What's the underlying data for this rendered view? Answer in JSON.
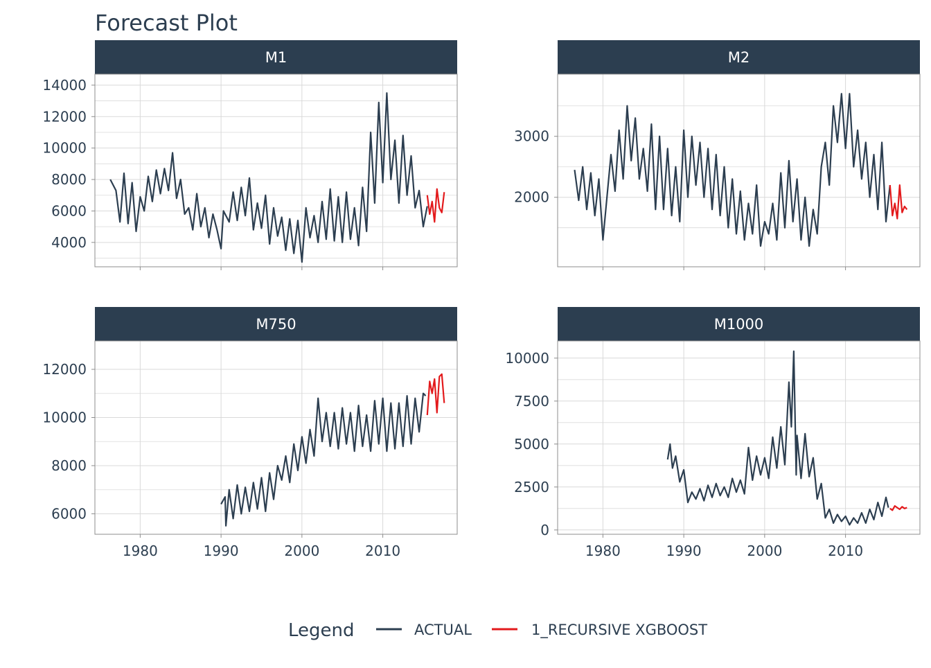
{
  "title": "Forecast Plot",
  "colors": {
    "actual": "#2c3e50",
    "forecast": "#e31a1c",
    "strip": "#2c3e50",
    "strip_text": "#ffffff",
    "grid": "#d9d9d9",
    "panel_border": "#8c8c8c",
    "text": "#2c3e50"
  },
  "legend": {
    "title": "Legend",
    "position": "bottom",
    "items": [
      {
        "label": "ACTUAL",
        "color": "#2c3e50"
      },
      {
        "label": "1_RECURSIVE XGBOOST",
        "color": "#e31a1c"
      }
    ]
  },
  "chart_data": [
    {
      "panel": "M1",
      "type": "line",
      "xlim": [
        1974.4,
        2019.2
      ],
      "ylim": [
        2450,
        14700
      ],
      "x_ticks": [
        1980,
        1990,
        2000,
        2010
      ],
      "x_tick_labels": [
        "",
        "",
        "",
        ""
      ],
      "y_ticks": [
        4000,
        6000,
        8000,
        10000,
        12000,
        14000
      ],
      "y_tick_labels": [
        "4000",
        "6000",
        "8000",
        "10000",
        "12000",
        "14000"
      ],
      "y_minor": [
        3000,
        5000,
        7000,
        9000,
        11000,
        13000
      ],
      "series": [
        {
          "name": "ACTUAL",
          "x": [
            1976.3,
            1977.0,
            1977.5,
            1978.0,
            1978.5,
            1979.0,
            1979.5,
            1980.0,
            1980.5,
            1981.0,
            1981.5,
            1982.0,
            1982.5,
            1983.0,
            1983.5,
            1984.0,
            1984.5,
            1985.0,
            1985.5,
            1986.0,
            1986.5,
            1987.0,
            1987.5,
            1988.0,
            1988.5,
            1989.0,
            1989.5,
            1990.0,
            1990.3,
            1991.0,
            1991.5,
            1992.0,
            1992.5,
            1993.0,
            1993.5,
            1994.0,
            1994.5,
            1995.0,
            1995.5,
            1996.0,
            1996.5,
            1997.0,
            1997.5,
            1998.0,
            1998.5,
            1999.0,
            1999.5,
            2000.0,
            2000.5,
            2001.0,
            2001.5,
            2002.0,
            2002.5,
            2003.0,
            2003.5,
            2004.0,
            2004.5,
            2005.0,
            2005.5,
            2006.0,
            2006.5,
            2007.0,
            2007.5,
            2008.0,
            2008.5,
            2009.0,
            2009.5,
            2010.0,
            2010.5,
            2011.0,
            2011.5,
            2012.0,
            2012.5,
            2013.0,
            2013.5,
            2014.0,
            2014.5,
            2015.0,
            2015.5
          ],
          "y": [
            8000,
            7300,
            5300,
            8400,
            5200,
            7800,
            4700,
            6900,
            6000,
            8200,
            6600,
            8600,
            7100,
            8700,
            7300,
            9700,
            6800,
            8000,
            5800,
            6200,
            4800,
            7100,
            5000,
            6200,
            4300,
            5800,
            4800,
            3600,
            6000,
            5300,
            7200,
            5400,
            7500,
            5700,
            8100,
            4800,
            6500,
            4900,
            7000,
            3900,
            6200,
            4400,
            5600,
            3500,
            5500,
            3300,
            5400,
            2750,
            6200,
            4300,
            5700,
            4000,
            6600,
            4200,
            7400,
            4100,
            6900,
            4000,
            7200,
            4200,
            6200,
            3800,
            7500,
            4700,
            11000,
            6500,
            12900,
            7800,
            13500,
            8000,
            10500,
            6500,
            10800,
            7000,
            9500,
            6200,
            7300,
            5000,
            6300
          ]
        },
        {
          "name": "1_RECURSIVE XGBOOST",
          "x": [
            2015.5,
            2015.8,
            2016.1,
            2016.4,
            2016.7,
            2017.0,
            2017.3,
            2017.6
          ],
          "y": [
            7000,
            5800,
            6600,
            5300,
            7400,
            6200,
            5900,
            7200
          ]
        }
      ]
    },
    {
      "panel": "M2",
      "type": "line",
      "xlim": [
        1974.4,
        2019.2
      ],
      "ylim": [
        860,
        4020
      ],
      "x_ticks": [
        1980,
        1990,
        2000,
        2010
      ],
      "x_tick_labels": [
        "",
        "",
        "",
        ""
      ],
      "y_ticks": [
        2000,
        3000
      ],
      "y_tick_labels": [
        "2000",
        "3000"
      ],
      "y_minor": [
        1500,
        2500,
        3500
      ],
      "series": [
        {
          "name": "ACTUAL",
          "x": [
            1976.5,
            1977.0,
            1977.5,
            1978.0,
            1978.5,
            1979.0,
            1979.5,
            1980.0,
            1980.5,
            1981.0,
            1981.5,
            1982.0,
            1982.5,
            1983.0,
            1983.5,
            1984.0,
            1984.5,
            1985.0,
            1985.5,
            1986.0,
            1986.5,
            1987.0,
            1987.5,
            1988.0,
            1988.5,
            1989.0,
            1989.5,
            1990.0,
            1990.5,
            1991.0,
            1991.5,
            1992.0,
            1992.5,
            1993.0,
            1993.5,
            1994.0,
            1994.5,
            1995.0,
            1995.5,
            1996.0,
            1996.5,
            1997.0,
            1997.5,
            1998.0,
            1998.5,
            1999.0,
            1999.5,
            2000.0,
            2000.5,
            2001.0,
            2001.5,
            2002.0,
            2002.5,
            2003.0,
            2003.5,
            2004.0,
            2004.5,
            2005.0,
            2005.5,
            2006.0,
            2006.5,
            2007.0,
            2007.5,
            2008.0,
            2008.5,
            2009.0,
            2009.5,
            2010.0,
            2010.5,
            2011.0,
            2011.5,
            2012.0,
            2012.5,
            2013.0,
            2013.5,
            2014.0,
            2014.5,
            2015.0,
            2015.5
          ],
          "y": [
            2450,
            1950,
            2500,
            1800,
            2400,
            1700,
            2300,
            1300,
            2000,
            2700,
            2100,
            3100,
            2300,
            3500,
            2600,
            3300,
            2300,
            2800,
            2100,
            3200,
            1800,
            3000,
            1800,
            2800,
            1700,
            2500,
            1600,
            3100,
            2000,
            3000,
            2200,
            2900,
            2000,
            2800,
            1800,
            2700,
            1700,
            2500,
            1500,
            2300,
            1400,
            2100,
            1300,
            1900,
            1400,
            2200,
            1200,
            1600,
            1400,
            1900,
            1300,
            2400,
            1500,
            2600,
            1600,
            2300,
            1300,
            2000,
            1200,
            1800,
            1400,
            2500,
            2900,
            2200,
            3500,
            2900,
            3700,
            2800,
            3700,
            2500,
            3100,
            2300,
            2900,
            2000,
            2700,
            1800,
            2900,
            1600,
            2200
          ]
        },
        {
          "name": "1_RECURSIVE XGBOOST",
          "x": [
            2015.5,
            2015.8,
            2016.1,
            2016.4,
            2016.7,
            2017.0,
            2017.3,
            2017.6
          ],
          "y": [
            2200,
            1700,
            1900,
            1650,
            2200,
            1750,
            1850,
            1800
          ]
        }
      ]
    },
    {
      "panel": "M750",
      "type": "line",
      "xlim": [
        1974.4,
        2019.2
      ],
      "ylim": [
        5150,
        13180
      ],
      "x_ticks": [
        1980,
        1990,
        2000,
        2010
      ],
      "x_tick_labels": [
        "1980",
        "1990",
        "2000",
        "2010"
      ],
      "y_ticks": [
        6000,
        8000,
        10000,
        12000
      ],
      "y_tick_labels": [
        "6000",
        "8000",
        "10000",
        "12000"
      ],
      "y_minor": [
        7000,
        9000,
        11000
      ],
      "series": [
        {
          "name": "ACTUAL",
          "x": [
            1990.0,
            1990.5,
            1990.6,
            1991.0,
            1991.5,
            1992.0,
            1992.5,
            1993.0,
            1993.5,
            1994.0,
            1994.5,
            1995.0,
            1995.5,
            1996.0,
            1996.5,
            1997.0,
            1997.5,
            1998.0,
            1998.5,
            1999.0,
            1999.5,
            2000.0,
            2000.5,
            2001.0,
            2001.5,
            2002.0,
            2002.5,
            2003.0,
            2003.5,
            2004.0,
            2004.5,
            2005.0,
            2005.5,
            2006.0,
            2006.5,
            2007.0,
            2007.5,
            2008.0,
            2008.5,
            2009.0,
            2009.5,
            2010.0,
            2010.5,
            2011.0,
            2011.5,
            2012.0,
            2012.5,
            2013.0,
            2013.5,
            2014.0,
            2014.5,
            2015.0,
            2015.3
          ],
          "y": [
            6400,
            6700,
            5500,
            7000,
            5800,
            7200,
            6000,
            7100,
            6100,
            7300,
            6200,
            7500,
            6100,
            7700,
            6600,
            8000,
            7400,
            8400,
            7300,
            8900,
            7800,
            9200,
            8100,
            9500,
            8400,
            10800,
            9000,
            10200,
            8800,
            10200,
            8700,
            10400,
            8900,
            10200,
            8600,
            10500,
            8800,
            10100,
            8600,
            10700,
            8900,
            10800,
            8600,
            10600,
            8700,
            10600,
            8800,
            10900,
            8900,
            10800,
            9400,
            11000,
            10900
          ]
        },
        {
          "name": "1_RECURSIVE XGBOOST",
          "x": [
            2015.5,
            2015.8,
            2016.1,
            2016.4,
            2016.7,
            2017.0,
            2017.3,
            2017.6
          ],
          "y": [
            10100,
            11500,
            11000,
            11600,
            10200,
            11700,
            11800,
            10600
          ]
        }
      ]
    },
    {
      "panel": "M1000",
      "type": "line",
      "xlim": [
        1974.4,
        2019.2
      ],
      "ylim": [
        -250,
        11000
      ],
      "x_ticks": [
        1980,
        1990,
        2000,
        2010
      ],
      "x_tick_labels": [
        "1980",
        "1990",
        "2000",
        "2010"
      ],
      "y_ticks": [
        0,
        2500,
        5000,
        7500,
        10000
      ],
      "y_tick_labels": [
        "0",
        "2500",
        "5000",
        "7500",
        "10000"
      ],
      "y_minor": [
        1250,
        3750,
        6250,
        8750
      ],
      "series": [
        {
          "name": "ACTUAL",
          "x": [
            1988.0,
            1988.3,
            1988.6,
            1989.0,
            1989.5,
            1990.0,
            1990.5,
            1991.0,
            1991.5,
            1992.0,
            1992.5,
            1993.0,
            1993.5,
            1994.0,
            1994.5,
            1995.0,
            1995.5,
            1996.0,
            1996.5,
            1997.0,
            1997.5,
            1998.0,
            1998.5,
            1999.0,
            1999.5,
            2000.0,
            2000.5,
            2001.0,
            2001.5,
            2002.0,
            2002.5,
            2003.0,
            2003.3,
            2003.6,
            2003.9,
            2004.0,
            2004.5,
            2005.0,
            2005.5,
            2006.0,
            2006.5,
            2007.0,
            2007.5,
            2008.0,
            2008.5,
            2009.0,
            2009.5,
            2010.0,
            2010.5,
            2011.0,
            2011.5,
            2012.0,
            2012.5,
            2013.0,
            2013.5,
            2014.0,
            2014.5,
            2015.0,
            2015.3
          ],
          "y": [
            4100,
            5000,
            3600,
            4300,
            2800,
            3500,
            1600,
            2200,
            1800,
            2400,
            1700,
            2600,
            1900,
            2700,
            2000,
            2500,
            1900,
            3000,
            2200,
            2900,
            2100,
            4800,
            2900,
            4300,
            3200,
            4200,
            3000,
            5400,
            3600,
            6000,
            3800,
            8600,
            6000,
            10400,
            3200,
            5500,
            3000,
            5600,
            3100,
            4200,
            1800,
            2700,
            700,
            1200,
            400,
            900,
            500,
            800,
            300,
            700,
            400,
            1000,
            400,
            1200,
            600,
            1600,
            800,
            1900,
            1300
          ]
        },
        {
          "name": "1_RECURSIVE XGBOOST",
          "x": [
            2015.5,
            2015.8,
            2016.1,
            2016.4,
            2016.7,
            2017.0,
            2017.3,
            2017.6
          ],
          "y": [
            1250,
            1150,
            1400,
            1300,
            1200,
            1350,
            1250,
            1300
          ]
        }
      ]
    }
  ]
}
